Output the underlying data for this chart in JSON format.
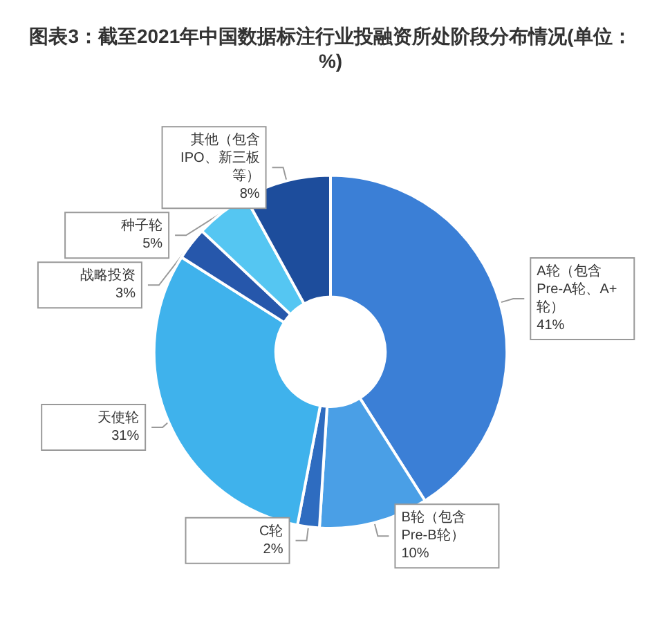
{
  "chart_data": {
    "type": "donut",
    "title": "图表3：截至2021年中国数据标注行业投融资所处阶段分布情况(单位：%)",
    "categories": [
      "A轮（包含Pre-A轮、A+轮）",
      "B轮（包含Pre-B轮）",
      "C轮",
      "天使轮",
      "战略投资",
      "种子轮",
      "其他（包含IPO、新三板等）"
    ],
    "values": [
      41,
      10,
      2,
      31,
      3,
      5,
      8
    ],
    "value_labels": [
      "41%",
      "10%",
      "2%",
      "31%",
      "3%",
      "5%",
      "8%"
    ],
    "colors": [
      "#3b7fd6",
      "#4a9fe6",
      "#2e6cc0",
      "#3fb2ec",
      "#2657ab",
      "#55c6f2",
      "#1d4d9c"
    ],
    "legend": false
  }
}
